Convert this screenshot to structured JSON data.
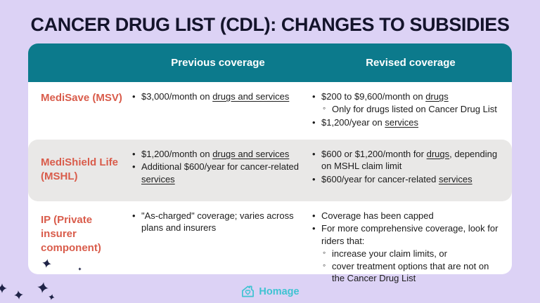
{
  "title": "CANCER DRUG LIST (CDL): CHANGES TO SUBSIDIES",
  "colors": {
    "background": "#dcd2f5",
    "header_teal": "#0c7a8c",
    "row_gray": "#e9e8e7",
    "label_red": "#d95c4b",
    "body_text": "#1c1c1c",
    "title_navy": "#14142b",
    "brand_teal": "#3fc3d2",
    "sparkle_navy": "#1f2347"
  },
  "table": {
    "headers": {
      "previous": "Previous coverage",
      "revised": "Revised coverage"
    },
    "rows": [
      {
        "label": "MediSave (MSV)",
        "previous": [
          {
            "type": "bullet",
            "segments": [
              {
                "t": "$3,000/month on "
              },
              {
                "t": "drugs and services",
                "u": true
              }
            ]
          }
        ],
        "revised": [
          {
            "type": "bullet",
            "segments": [
              {
                "t": "$200 to $9,600/month on "
              },
              {
                "t": "drugs",
                "u": true
              }
            ]
          },
          {
            "type": "sub",
            "segments": [
              {
                "t": "Only for drugs listed on Cancer Drug List"
              }
            ]
          },
          {
            "type": "bullet",
            "segments": [
              {
                "t": "$1,200/year on "
              },
              {
                "t": "services",
                "u": true
              }
            ]
          }
        ]
      },
      {
        "label": "MediShield Life (MSHL)",
        "previous": [
          {
            "type": "bullet",
            "segments": [
              {
                "t": "$1,200/month on "
              },
              {
                "t": "drugs and services",
                "u": true
              }
            ]
          },
          {
            "type": "bullet",
            "segments": [
              {
                "t": "Additional $600/year for cancer-related "
              },
              {
                "t": "services",
                "u": true
              }
            ]
          }
        ],
        "revised": [
          {
            "type": "bullet",
            "segments": [
              {
                "t": "$600 or $1,200/month for "
              },
              {
                "t": "drugs",
                "u": true
              },
              {
                "t": ", depending on MSHL claim limit"
              }
            ]
          },
          {
            "type": "bullet",
            "segments": [
              {
                "t": "$600/year for cancer-related "
              },
              {
                "t": "services",
                "u": true
              }
            ]
          }
        ]
      },
      {
        "label": "IP (Private insurer component)",
        "previous": [
          {
            "type": "bullet",
            "segments": [
              {
                "t": "\"As-charged\" coverage; varies across plans and insurers"
              }
            ]
          }
        ],
        "revised": [
          {
            "type": "bullet",
            "segments": [
              {
                "t": "Coverage has been capped"
              }
            ]
          },
          {
            "type": "bullet",
            "segments": [
              {
                "t": "For more comprehensive coverage, look for riders that:"
              }
            ]
          },
          {
            "type": "sub",
            "segments": [
              {
                "t": "increase your claim limits, or"
              }
            ]
          },
          {
            "type": "sub",
            "segments": [
              {
                "t": "cover treatment options that are not on the Cancer Drug List"
              }
            ]
          }
        ]
      }
    ]
  },
  "footer": {
    "brand": "Homage"
  }
}
